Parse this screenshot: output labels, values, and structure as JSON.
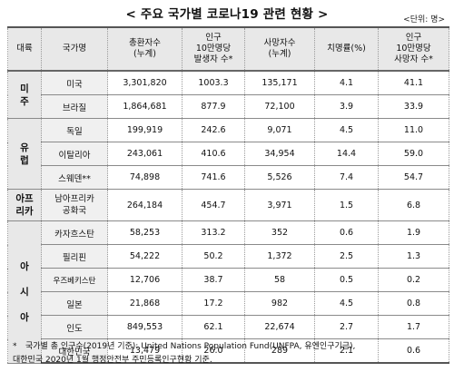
{
  "title": "< 주요 국가별 코로나19 관련 현황 >",
  "unit_note": "<단위: 명>",
  "columns": {
    "region": "대륙",
    "country": "국가명",
    "cases_1": "총환자수",
    "cases_2": "(누계)",
    "incidence_1": "인구",
    "incidence_2": "10만명당",
    "incidence_3": "발생자 수*",
    "deaths_1": "사망자수",
    "deaths_2": "(누계)",
    "fatality": "치명률(%)",
    "mortality_1": "인구",
    "mortality_2": "10만명당",
    "mortality_3": "사망자 수*"
  },
  "regions": {
    "americas_1": "미",
    "americas_2": "주",
    "europe_1": "유",
    "europe_2": "럽",
    "africa_1": "아프",
    "africa_2": "리카",
    "asia_1": "아",
    "asia_2": "시",
    "asia_3": "아"
  },
  "rows": [
    {
      "country": "미국",
      "cases": "3,301,820",
      "per100k": "1003.3",
      "deaths": "135,171",
      "fatality": "4.1",
      "deaths_per100k": "41.1"
    },
    {
      "country": "브라질",
      "cases": "1,864,681",
      "per100k": "877.9",
      "deaths": "72,100",
      "fatality": "3.9",
      "deaths_per100k": "33.9"
    },
    {
      "country": "독일",
      "cases": "199,919",
      "per100k": "242.6",
      "deaths": "9,071",
      "fatality": "4.5",
      "deaths_per100k": "11.0"
    },
    {
      "country": "이탈리아",
      "cases": "243,061",
      "per100k": "410.6",
      "deaths": "34,954",
      "fatality": "14.4",
      "deaths_per100k": "59.0"
    },
    {
      "country": "스웨덴**",
      "cases": "74,898",
      "per100k": "741.6",
      "deaths": "5,526",
      "fatality": "7.4",
      "deaths_per100k": "54.7"
    },
    {
      "country_1": "남아프리카",
      "country_2": "공화국",
      "cases": "264,184",
      "per100k": "454.7",
      "deaths": "3,971",
      "fatality": "1.5",
      "deaths_per100k": "6.8"
    },
    {
      "country": "카자흐스탄",
      "cases": "58,253",
      "per100k": "313.2",
      "deaths": "352",
      "fatality": "0.6",
      "deaths_per100k": "1.9"
    },
    {
      "country": "필리핀",
      "cases": "54,222",
      "per100k": "50.2",
      "deaths": "1,372",
      "fatality": "2.5",
      "deaths_per100k": "1.3"
    },
    {
      "country": "우즈베키스탄",
      "cases": "12,706",
      "per100k": "38.7",
      "deaths": "58",
      "fatality": "0.5",
      "deaths_per100k": "0.2"
    },
    {
      "country": "일본",
      "cases": "21,868",
      "per100k": "17.2",
      "deaths": "982",
      "fatality": "4.5",
      "deaths_per100k": "0.8"
    },
    {
      "country": "인도",
      "cases": "849,553",
      "per100k": "62.1",
      "deaths": "22,674",
      "fatality": "2.7",
      "deaths_per100k": "1.7"
    },
    {
      "country": "대한민국",
      "cases": "13,479",
      "per100k": "26.0",
      "deaths": "289",
      "fatality": "2.1",
      "deaths_per100k": "0.6"
    }
  ],
  "footnote": {
    "marker": "*",
    "line1": "국가별 총 인구수(2019년 기준): United Nations Population Fund(UNFPA, 유엔인구기금),",
    "line2": "대한민국 2020년 1월 행정안전부 주민등록인구현황 기준."
  }
}
